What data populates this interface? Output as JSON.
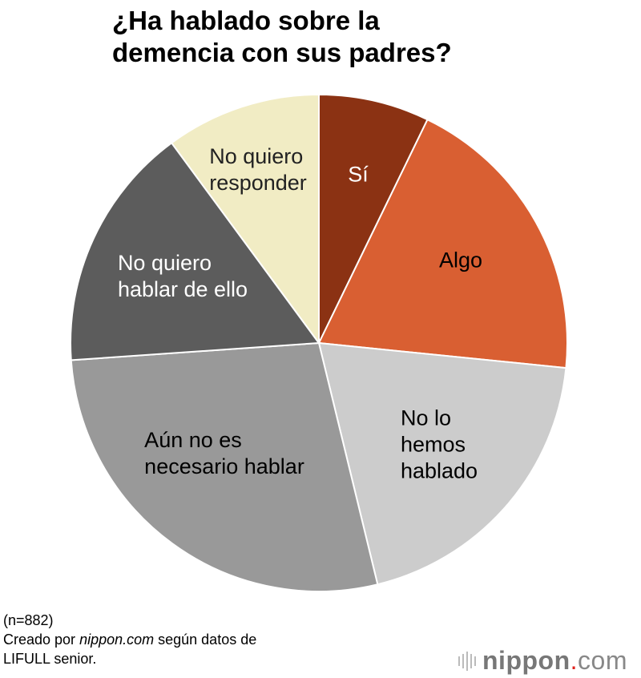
{
  "chart_data": {
    "type": "pie",
    "title": "¿Ha hablado sobre la\ndemencia con sus padres?",
    "start_angle": "top, clockwise",
    "slices": [
      {
        "label": "Sí",
        "value": 7.2,
        "color": "#8b3213",
        "text_color": "#ffffff"
      },
      {
        "label": "Algo",
        "value": 19.4,
        "color": "#d95f32",
        "text_color": "#000000"
      },
      {
        "label": "No lo\nhemos\nhablado",
        "value": 19.6,
        "color": "#cccccc",
        "text_color": "#000000"
      },
      {
        "label": "Aún no es\nnecesario hablar",
        "value": 27.7,
        "color": "#999999",
        "text_color": "#000000"
      },
      {
        "label": "No quiero\nhablar de ello",
        "value": 16.0,
        "color": "#5c5c5c",
        "text_color": "#ffffff"
      },
      {
        "label": "No quiero\nresponder",
        "value": 10.1,
        "color": "#f1ecc4",
        "text_color": "#222222"
      }
    ]
  },
  "notes": {
    "n": "(n=882)",
    "credit_prefix": "Creado por ",
    "credit_site": "nippon.com",
    "credit_suffix": " según datos de",
    "credit_line2": "LIFULL senior."
  },
  "logo": {
    "text": "nippon.com"
  }
}
